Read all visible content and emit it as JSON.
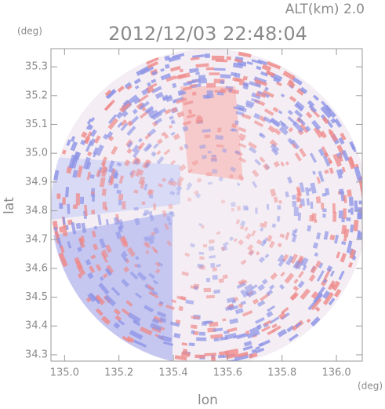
{
  "chart_data": {
    "type": "radar-map",
    "title": "2012/12/03 22:48:04",
    "altitude_label": "ALT(km)  2.0",
    "x_label": "lon",
    "y_label": "lat",
    "x_unit": "(deg)",
    "y_unit": "(deg)",
    "xlim": [
      134.95,
      136.095
    ],
    "ylim": [
      34.278,
      35.363
    ],
    "xticks": [
      {
        "value": 135.0,
        "label": "135.0"
      },
      135.2,
      135.4,
      135.6,
      135.8,
      {
        "value": 136.0,
        "label": "136.0"
      }
    ],
    "yticks": [
      34.3,
      34.4,
      34.5,
      34.6,
      34.7,
      34.8,
      34.9,
      {
        "value": 35.0,
        "label": "35.0"
      },
      35.1,
      35.2,
      35.3
    ]
  }
}
